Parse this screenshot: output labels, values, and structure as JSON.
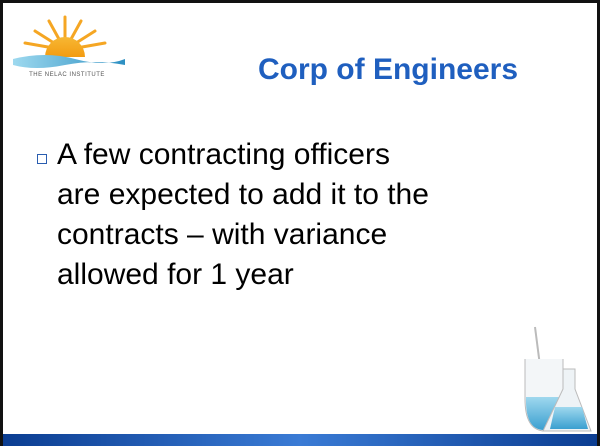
{
  "logo": {
    "text": "THE NELAC INSTITUTE"
  },
  "header": {
    "title": "Corp of Engineers"
  },
  "bullet": {
    "lines": [
      "A few contracting officers",
      "are expected to add it to the",
      "contracts – with variance",
      "allowed for 1 year"
    ]
  }
}
